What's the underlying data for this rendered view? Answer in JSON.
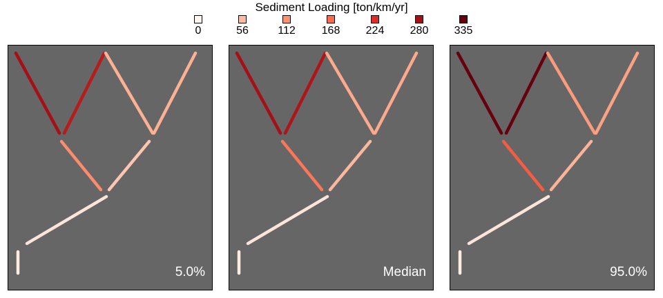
{
  "chart_data": {
    "type": "network-map",
    "legend": {
      "title": "Sediment Loading [ton/km/yr]",
      "ticks": [
        "0",
        "56",
        "112",
        "168",
        "224",
        "280",
        "335"
      ],
      "colors": [
        "#fff5f0",
        "#fcbba1",
        "#fc9272",
        "#fb6a4a",
        "#de2d26",
        "#a50f15",
        "#67000d"
      ]
    },
    "background": "#666666",
    "panels": [
      {
        "label": "5.0%",
        "reach_values": {
          "upper_left_outer": 280,
          "upper_left_inner": 260,
          "upper_right_inner": 70,
          "upper_right_outer": 70,
          "middle_left": 120,
          "middle_right": 45,
          "trunk": 15,
          "outlet": 10
        }
      },
      {
        "label": "Median",
        "reach_values": {
          "upper_left_outer": 280,
          "upper_left_inner": 270,
          "upper_right_inner": 80,
          "upper_right_outer": 80,
          "middle_left": 150,
          "middle_right": 60,
          "trunk": 15,
          "outlet": 10
        }
      },
      {
        "label": "95.0%",
        "reach_values": {
          "upper_left_outer": 335,
          "upper_left_inner": 335,
          "upper_right_inner": 100,
          "upper_right_outer": 90,
          "middle_left": 180,
          "middle_right": 65,
          "trunk": 15,
          "outlet": 10
        }
      }
    ]
  }
}
